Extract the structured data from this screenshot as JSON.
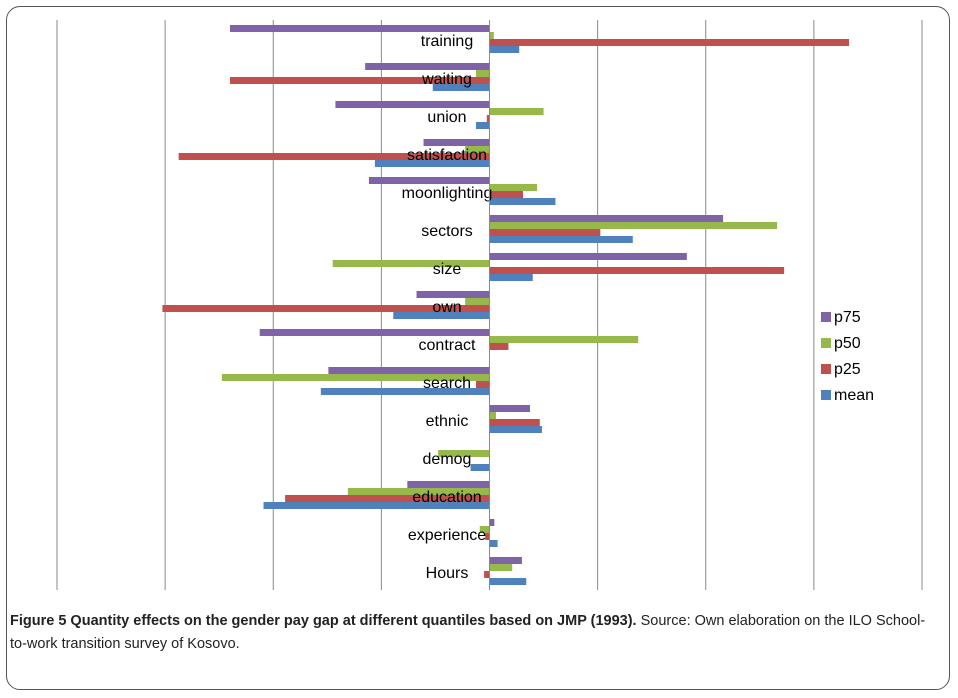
{
  "chart_data": {
    "type": "hbar",
    "categories": [
      "training",
      "waiting",
      "union",
      "satisfaction",
      "moonlighting",
      "sectors",
      "size",
      "own",
      "contract",
      "search",
      "ethnic",
      "demog",
      "education",
      "experience",
      "Hours"
    ],
    "series": [
      {
        "name": "p75",
        "color": "#7f63a7",
        "values": [
          -0.048,
          -0.023,
          -0.0285,
          -0.0122,
          -0.0223,
          0.0432,
          0.0365,
          -0.0135,
          -0.0425,
          -0.0298,
          0.0075,
          0,
          -0.0152,
          0.0009,
          0.006
        ]
      },
      {
        "name": "p50",
        "color": "#97b94b",
        "values": [
          0.0008,
          -0.0025,
          0.01,
          -0.0045,
          0.0088,
          0.0532,
          -0.029,
          -0.0045,
          0.0275,
          -0.0495,
          0.0012,
          -0.0095,
          -0.0262,
          -0.0018,
          0.0042
        ]
      },
      {
        "name": "p25",
        "color": "#c0504d",
        "values": [
          0.0665,
          -0.048,
          -0.0005,
          -0.0575,
          0.0062,
          0.0205,
          0.0545,
          -0.0605,
          0.0035,
          -0.0025,
          0.0093,
          0,
          -0.0378,
          -0.0008,
          -0.001
        ]
      },
      {
        "name": "mean",
        "color": "#4f81bd",
        "values": [
          0.0055,
          -0.0105,
          -0.0025,
          -0.0212,
          0.0122,
          0.0265,
          0.008,
          -0.0178,
          0,
          -0.0312,
          0.0097,
          -0.0035,
          -0.0418,
          0.0015,
          0.0068
        ]
      }
    ],
    "xlim": [
      -0.08,
      0.08
    ],
    "xticks": [
      -0.08,
      -0.06,
      -0.04,
      -0.02,
      0,
      0.02,
      0.04,
      0.06,
      0.08
    ],
    "grid": true,
    "legend": "right"
  },
  "caption": {
    "title": "Figure 5 Quantity effects on the gender pay gap at different quantiles based on JMP (1993).",
    "text": "Source: Own elaboration on the ILO School-to-work transition survey of Kosovo."
  }
}
